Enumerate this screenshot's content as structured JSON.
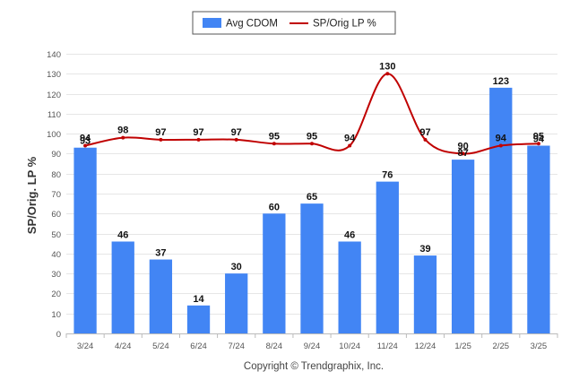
{
  "chart_data": {
    "type": "bar",
    "categories": [
      "3/24",
      "4/24",
      "5/24",
      "6/24",
      "7/24",
      "8/24",
      "9/24",
      "10/24",
      "11/24",
      "12/24",
      "1/25",
      "2/25",
      "3/25"
    ],
    "series": [
      {
        "name": "Avg CDOM",
        "type": "bar",
        "color": "#4285f4",
        "values": [
          93,
          46,
          37,
          14,
          30,
          60,
          65,
          46,
          76,
          39,
          87,
          123,
          94
        ]
      },
      {
        "name": "SP/Orig LP %",
        "type": "line",
        "color": "#c00000",
        "values": [
          94,
          98,
          97,
          97,
          97,
          95,
          95,
          94,
          130,
          97,
          90,
          94,
          95
        ]
      }
    ],
    "ylabel": "SP/Orig. LP %",
    "ylim": [
      0,
      140
    ],
    "yticks": [
      0,
      10,
      20,
      30,
      40,
      50,
      60,
      70,
      80,
      90,
      100,
      110,
      120,
      130,
      140
    ],
    "grid": true,
    "legend_position": "top-center"
  },
  "copyright": "Copyright © Trendgraphix, Inc."
}
